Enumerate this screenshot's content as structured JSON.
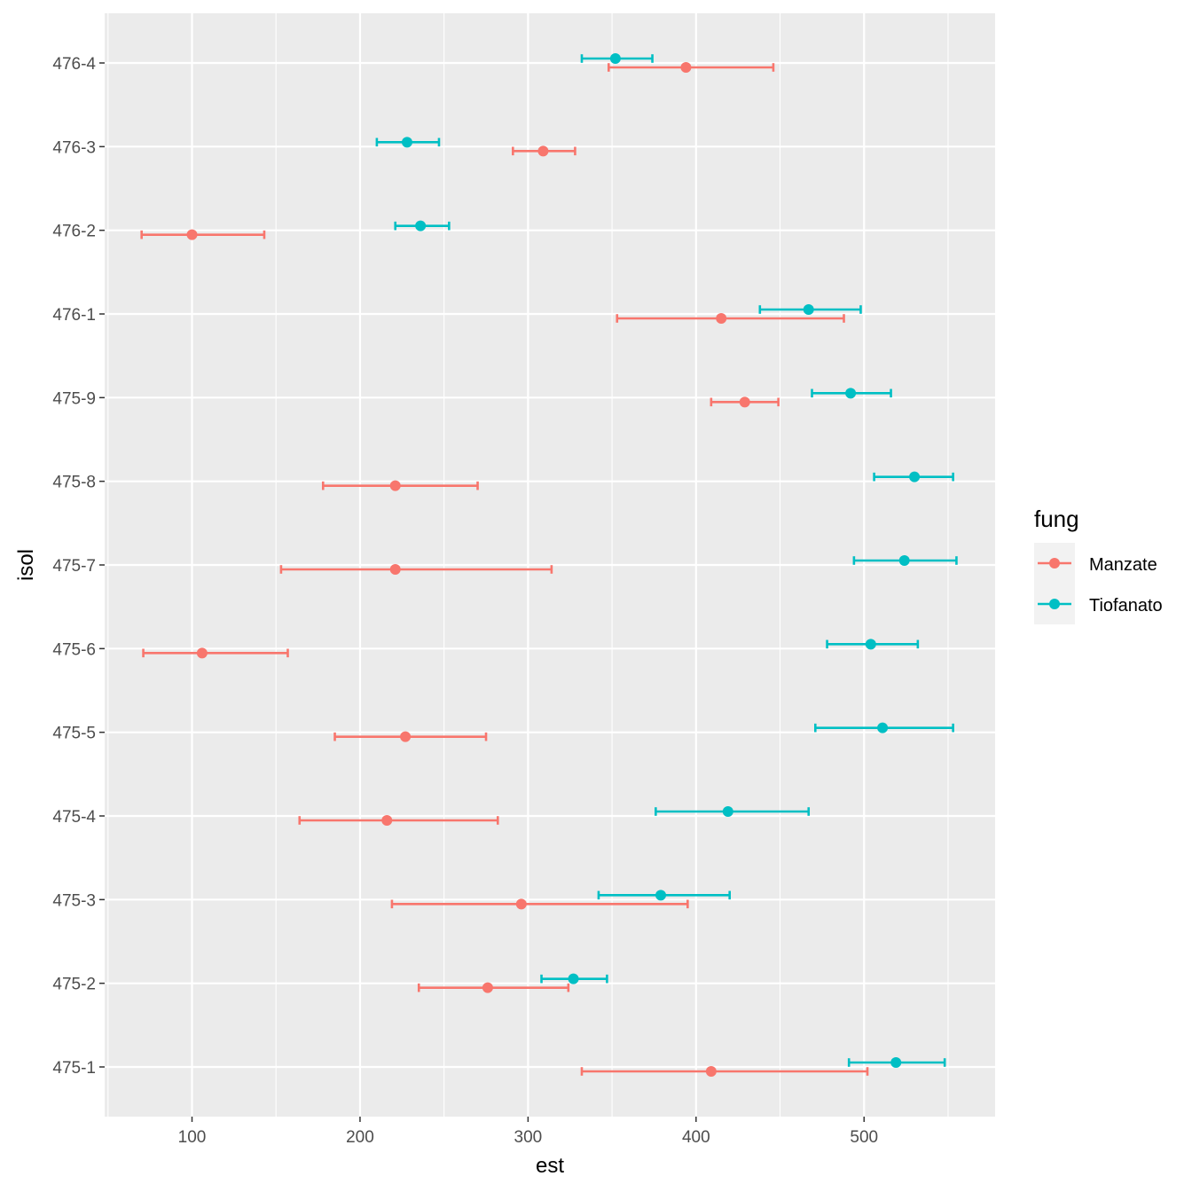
{
  "chart_data": {
    "type": "scatter",
    "subtype": "point-with-horizontal-errorbars",
    "xlabel": "est",
    "ylabel": "isol",
    "xlim": [
      48,
      578
    ],
    "xticks": [
      100,
      200,
      300,
      400,
      500
    ],
    "categories": [
      "475-1",
      "475-2",
      "475-3",
      "475-4",
      "475-5",
      "475-6",
      "475-7",
      "475-8",
      "475-9",
      "476-1",
      "476-2",
      "476-3",
      "476-4"
    ],
    "grid": true,
    "legend": {
      "title": "fung",
      "position": "right"
    },
    "series": [
      {
        "name": "Manzate",
        "color": "#F8766D",
        "points": [
          {
            "isol": "475-1",
            "est": 409,
            "low": 332,
            "high": 502
          },
          {
            "isol": "475-2",
            "est": 276,
            "low": 235,
            "high": 324
          },
          {
            "isol": "475-3",
            "est": 296,
            "low": 219,
            "high": 395
          },
          {
            "isol": "475-4",
            "est": 216,
            "low": 164,
            "high": 282
          },
          {
            "isol": "475-5",
            "est": 227,
            "low": 185,
            "high": 275
          },
          {
            "isol": "475-6",
            "est": 106,
            "low": 71,
            "high": 157
          },
          {
            "isol": "475-7",
            "est": 221,
            "low": 153,
            "high": 314
          },
          {
            "isol": "475-8",
            "est": 221,
            "low": 178,
            "high": 270
          },
          {
            "isol": "475-9",
            "est": 429,
            "low": 409,
            "high": 449
          },
          {
            "isol": "476-1",
            "est": 415,
            "low": 353,
            "high": 488
          },
          {
            "isol": "476-2",
            "est": 100,
            "low": 70,
            "high": 143
          },
          {
            "isol": "476-3",
            "est": 309,
            "low": 291,
            "high": 328
          },
          {
            "isol": "476-4",
            "est": 394,
            "low": 348,
            "high": 446
          }
        ]
      },
      {
        "name": "Tiofanato",
        "color": "#00BFC4",
        "points": [
          {
            "isol": "475-1",
            "est": 519,
            "low": 491,
            "high": 548
          },
          {
            "isol": "475-2",
            "est": 327,
            "low": 308,
            "high": 347
          },
          {
            "isol": "475-3",
            "est": 379,
            "low": 342,
            "high": 420
          },
          {
            "isol": "475-4",
            "est": 419,
            "low": 376,
            "high": 467
          },
          {
            "isol": "475-5",
            "est": 511,
            "low": 471,
            "high": 553
          },
          {
            "isol": "475-6",
            "est": 504,
            "low": 478,
            "high": 532
          },
          {
            "isol": "475-7",
            "est": 524,
            "low": 494,
            "high": 555
          },
          {
            "isol": "475-8",
            "est": 530,
            "low": 506,
            "high": 553
          },
          {
            "isol": "475-9",
            "est": 492,
            "low": 469,
            "high": 516
          },
          {
            "isol": "476-1",
            "est": 467,
            "low": 438,
            "high": 498
          },
          {
            "isol": "476-2",
            "est": 236,
            "low": 221,
            "high": 253
          },
          {
            "isol": "476-3",
            "est": 228,
            "low": 210,
            "high": 247
          },
          {
            "isol": "476-4",
            "est": 352,
            "low": 332,
            "high": 374
          }
        ]
      }
    ]
  }
}
